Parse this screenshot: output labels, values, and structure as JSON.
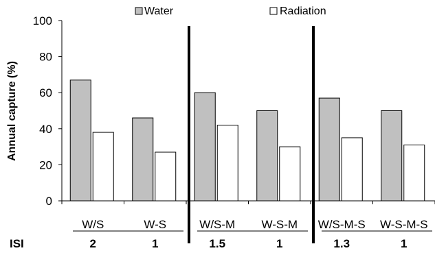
{
  "chart_data": {
    "type": "bar",
    "ylabel": "Annual capture (%)",
    "ylim": [
      0,
      100
    ],
    "yticks": [
      0,
      20,
      40,
      60,
      80,
      100
    ],
    "categories": [
      "W/S",
      "W-S",
      "W/S-M",
      "W-S-M",
      "W/S-M-S",
      "W-S-M-S"
    ],
    "series": [
      {
        "name": "Water",
        "values": [
          67,
          46,
          60,
          50,
          57,
          50
        ],
        "color": "#c0c0c0"
      },
      {
        "name": "Radiation",
        "values": [
          38,
          27,
          42,
          30,
          35,
          31
        ],
        "color": "#ffffff"
      }
    ],
    "row_label": "ISI",
    "isi_values": [
      "2",
      "1",
      "1.5",
      "1",
      "1.3",
      "1"
    ],
    "legend_position": "top",
    "grid": false
  }
}
